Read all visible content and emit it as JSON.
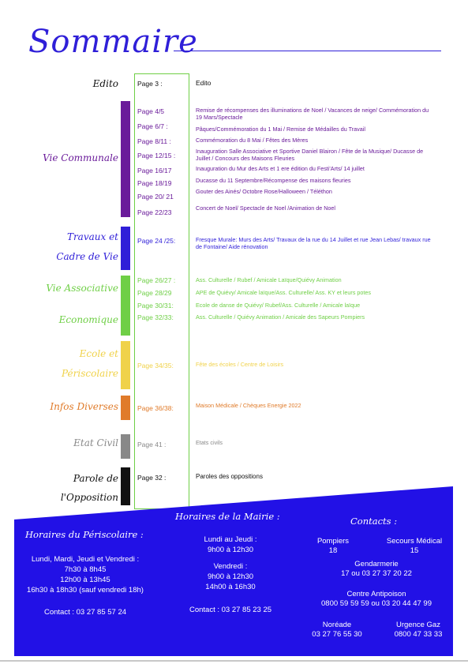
{
  "title": "Sommaire",
  "colors": {
    "blue": "#2f1fd8",
    "purple": "#6a1b9a",
    "green": "#6fcf46",
    "yellow": "#f0d24a",
    "orange": "#e07b2a",
    "gray": "#888888",
    "black": "#111111"
  },
  "edito": {
    "label": "Edito",
    "page": "Page 3 :",
    "desc": "Edito"
  },
  "vie_communale": {
    "label": "Vie Communale",
    "pages": [
      "Page 4/5",
      "Page 6/7 :",
      "Page 8/11 :",
      "Page 12/15 :",
      "Page 16/17",
      "Page 18/19",
      "Page 20/ 21",
      "Page 22/23"
    ],
    "descs": [
      "Remise de récompenses des illuminations de Noel / Vacances de neige/ Commémoration du 19 Mars/Spectacle",
      "Pâques/Commémoration du 1 Mai / Remise de Médailles du Travail",
      "Commémoration du 8 Mai / Fêtes des Mères",
      "Inauguration Salle Associative et Sportive Daniel Blairon / Fête de la Musique/ Ducasse de Juillet / Concours des Maisons Fleuries",
      "Inauguration du Mur des Arts et 1 ere édition du Festi'Arts/ 14 juillet",
      "Ducasse du 11 Septembre/Récompense des maisons fleuries",
      "Gouter des Ainés/ Octobre Rose/Halloween / Téléthon",
      "Concert de Noel/ Spectacle de Noel /Animation de Noel"
    ]
  },
  "travaux": {
    "label_line1": "Travaux et",
    "label_line2": "Cadre de Vie",
    "page": "Page 24 /25:",
    "desc": "Fresque Murale: Murs des Arts/ Travaux de la rue du 14 Juillet et rue Jean Lebas/ travaux rue de Fontaine/ Aide rénovation"
  },
  "vie_associative": {
    "label_line1": "Vie Associative",
    "label_line2": "Economique",
    "pages": [
      "Page 26/27 :",
      "Page 28/29",
      "Page 30/31:",
      "Page 32/33:"
    ],
    "descs": [
      "Ass. Culturelle / Rubef / Amicale Laïque/Quiévy Animation",
      "APE de Quiévy/ Amicale laïque/Ass. Culturelle/ Ass. KY et leurs potes",
      "Ecole de danse de Quiévy/ Rubef/Ass. Culturelle / Amicale laïque",
      "Ass. Culturelle /  Quiévy Animation / Amicale des Sapeurs Pompiers"
    ]
  },
  "ecole": {
    "label_line1": "Ecole et",
    "label_line2": "Périscolaire",
    "page": "Page 34/35:",
    "desc": "Fête des écoles / Centre de Loisirs"
  },
  "infos": {
    "label": "Infos Diverses",
    "page": "Page 36/38:",
    "desc": "Maison Médicale / Chèques Energie 2022"
  },
  "etat_civil": {
    "label": "Etat Civil",
    "page": "Page 41 :",
    "desc": "Etats civils"
  },
  "parole": {
    "label_line1": "Parole de",
    "label_line2": "l'Opposition",
    "page": "Page 32 :",
    "desc": "Paroles des oppositions"
  },
  "footer": {
    "periscolaire": {
      "title": "Horaires du Périscolaire :",
      "days": "Lundi, Mardi, Jeudi et Vendredi :",
      "slot1": "7h30 à 8h45",
      "slot2": "12h00 à 13h45",
      "slot3": "16h30 à 18h30 (sauf vendredi 18h)",
      "contact": "Contact : 03 27 85 57 24"
    },
    "mairie": {
      "title": "Horaires de la Mairie :",
      "days1": "Lundi au Jeudi :",
      "slot1": "9h00 à 12h30",
      "days2": "Vendredi :",
      "slot2": "9h00 à 12h30",
      "slot3": "14h00 à 16h30",
      "contact": "Contact : 03 27 85 23 25"
    },
    "contacts": {
      "title": "Contacts :",
      "pompiers": "Pompiers",
      "pompiers_num": "18",
      "secours": "Secours Médical",
      "secours_num": "15",
      "gendarmerie": "Gendarmerie",
      "gendarmerie_num": "17 ou 03 27 37 20 22",
      "antipoison": "Centre Antipoison",
      "antipoison_num": "0800 59 59 59 ou 03 20 44 47 99",
      "noreade": "Noréade",
      "noreade_num": "03 27 76 55 30",
      "gaz": "Urgence Gaz",
      "gaz_num": "0800 47 33 33"
    }
  }
}
